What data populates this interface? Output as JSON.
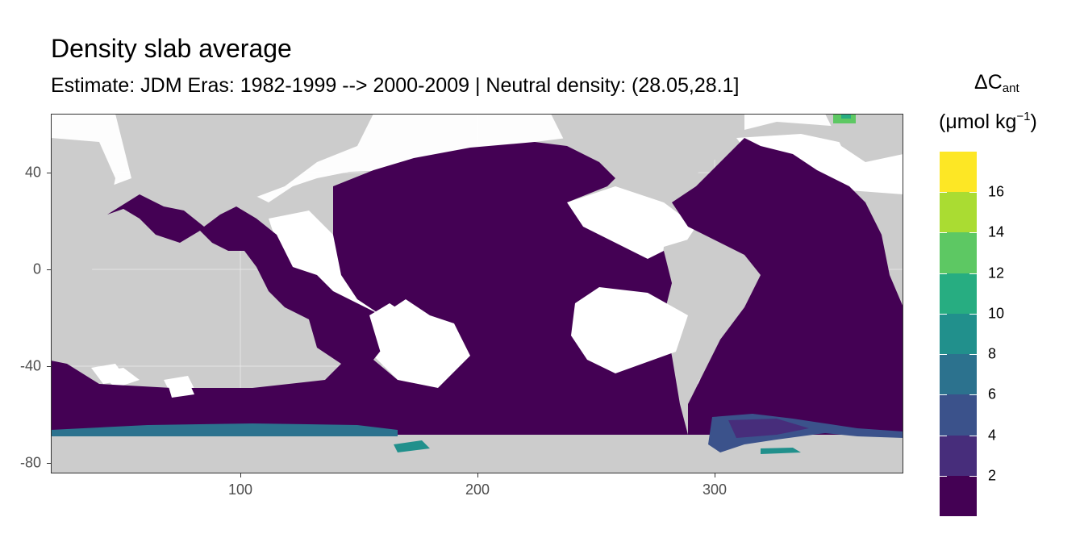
{
  "chart_data": {
    "type": "heatmap",
    "title": "Density slab average",
    "subtitle": "Estimate: JDM Eras: 1982-1999 --> 2000-2009 | Neutral density: (28.05,28.1]",
    "xlabel": "",
    "ylabel": "",
    "xlim": [
      20,
      380
    ],
    "ylim": [
      -85,
      65
    ],
    "x_ticks": [
      100,
      200,
      300
    ],
    "y_ticks": [
      40,
      0,
      -40,
      -80
    ],
    "grid": true,
    "legend_position": "right",
    "legend": {
      "title_line1": "ΔC",
      "title_sub": "ant",
      "title_line2_prefix": "(μmol kg",
      "title_sup": "−1",
      "title_line2_suffix": ")",
      "breaks": [
        2,
        4,
        6,
        8,
        10,
        12,
        14,
        16
      ],
      "bins": [
        {
          "range": [
            0,
            2
          ],
          "color": "#440154"
        },
        {
          "range": [
            2,
            4
          ],
          "color": "#472D7B"
        },
        {
          "range": [
            4,
            6
          ],
          "color": "#3B528B"
        },
        {
          "range": [
            6,
            8
          ],
          "color": "#2C728E"
        },
        {
          "range": [
            8,
            10
          ],
          "color": "#21908C"
        },
        {
          "range": [
            10,
            12
          ],
          "color": "#27AD81"
        },
        {
          "range": [
            12,
            14
          ],
          "color": "#5DC863"
        },
        {
          "range": [
            14,
            16
          ],
          "color": "#AADC32"
        },
        {
          "range": [
            16,
            18
          ],
          "color": "#FDE725"
        }
      ]
    },
    "colors": {
      "land": "#CCCCCC",
      "no_data": "#FFFFFF",
      "ocean_dominant": "#440154"
    }
  }
}
